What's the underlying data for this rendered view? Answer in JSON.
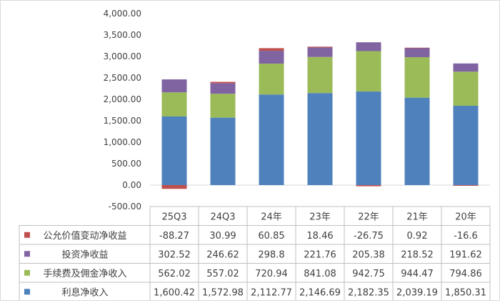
{
  "chart_data": {
    "type": "bar",
    "stacked": true,
    "categories": [
      "25Q3",
      "24Q3",
      "24年",
      "23年",
      "22年",
      "21年",
      "20年"
    ],
    "y_ticks": [
      "4,000.00",
      "3,500.00",
      "3,000.00",
      "2,500.00",
      "2,000.00",
      "1,500.00",
      "1,000.00",
      "500.00",
      "0.00",
      "-500.00"
    ],
    "ylim": [
      -500,
      4000
    ],
    "grid": false,
    "legend": "data-table",
    "series": [
      {
        "name": "利息净收入",
        "color": "#4f81bd",
        "values": [
          1600.42,
          1572.98,
          2112.77,
          2146.69,
          2182.35,
          2039.19,
          1850.31
        ],
        "labels": [
          "1,600.42",
          "1,572.98",
          "2,112.77",
          "2,146.69",
          "2,182.35",
          "2,039.19",
          "1,850.31"
        ]
      },
      {
        "name": "手续费及佣金净收入",
        "color": "#9bbb59",
        "values": [
          562.02,
          557.02,
          720.94,
          841.08,
          942.75,
          944.47,
          794.86
        ],
        "labels": [
          "562.02",
          "557.02",
          "720.94",
          "841.08",
          "942.75",
          "944.47",
          "794.86"
        ]
      },
      {
        "name": "投资净收益",
        "color": "#8064a2",
        "values": [
          302.52,
          246.62,
          298.8,
          221.76,
          205.38,
          218.52,
          191.62
        ],
        "labels": [
          "302.52",
          "246.62",
          "298.8",
          "221.76",
          "205.38",
          "218.52",
          "191.62"
        ]
      },
      {
        "name": "公允价值变动净收益",
        "color": "#c0504d",
        "values": [
          -88.27,
          30.99,
          60.85,
          18.46,
          -26.75,
          0.92,
          -16.6
        ],
        "labels": [
          "-88.27",
          "30.99",
          "60.85",
          "18.46",
          "-26.75",
          "0.92",
          "-16.6"
        ]
      }
    ]
  }
}
